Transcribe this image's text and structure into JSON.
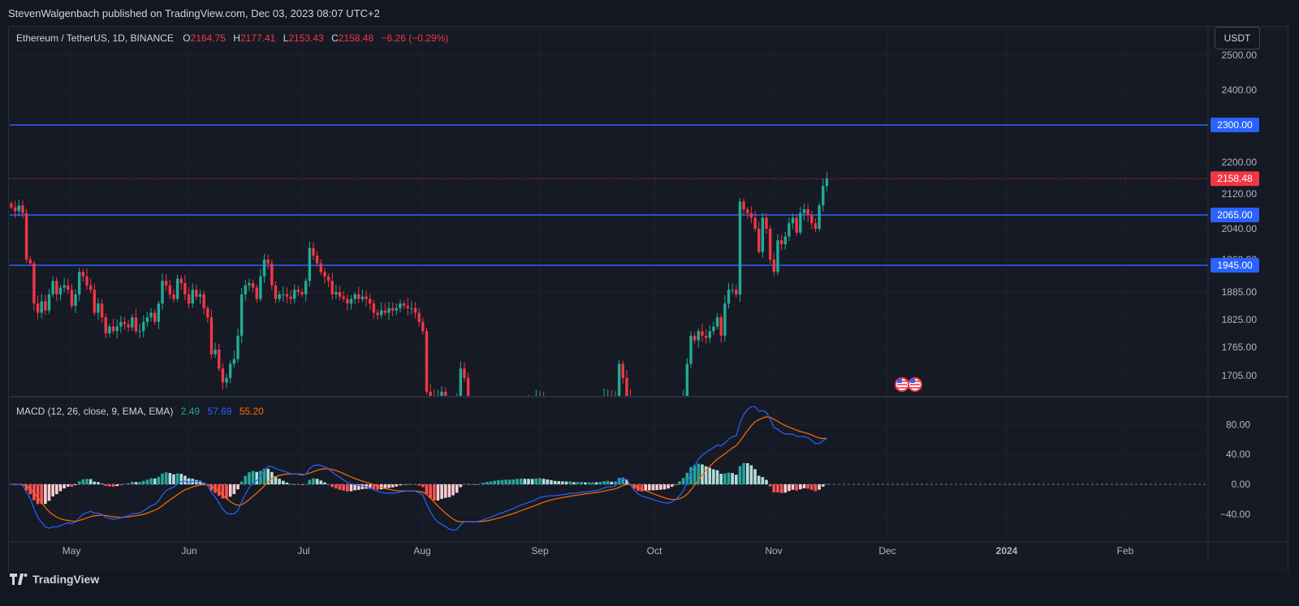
{
  "header": {
    "publisher_line": "StevenWalgenbach published on TradingView.com, Dec 03, 2023 08:07 UTC+2"
  },
  "legend": {
    "symbol": "Ethereum / TetherUS, 1D, BINANCE",
    "o_label": "O",
    "o_value": "2164.75",
    "h_label": "H",
    "h_value": "2177.41",
    "l_label": "L",
    "l_value": "2153.43",
    "c_label": "C",
    "c_value": "2158.48",
    "change": "−6.26 (−0.29%)"
  },
  "macd_legend": {
    "title": "MACD (12, 26, close, 9, EMA, EMA)",
    "hist": "2.49",
    "macd": "57.69",
    "signal": "55.20"
  },
  "currency_button": "USDT",
  "footer_brand": "TradingView",
  "colors": {
    "up": "#22ab94",
    "down": "#f23645",
    "level": "#2962ff",
    "macd_line": "#2962ff",
    "signal_line": "#ff6d00",
    "hist_up_strong": "#26a69a",
    "hist_up_weak": "#b2dfdb",
    "hist_down_strong": "#ff5252",
    "hist_down_weak": "#ffcdd2"
  },
  "chart_data": [
    {
      "type": "candlestick",
      "symbol": "ETHUSDT",
      "interval": "1D",
      "price_ticks": [
        "2500.00",
        "2400.00",
        "2200.00",
        "2120.00",
        "2040.00",
        "1960.00",
        "1885.00",
        "1825.00",
        "1765.00",
        "1705.00"
      ],
      "time_ticks": [
        "May",
        "Jun",
        "Jul",
        "Aug",
        "Sep",
        "Oct",
        "Nov",
        "Dec",
        "2024",
        "Feb"
      ],
      "horizontal_levels": [
        {
          "value": 2300.0,
          "label": "2300.00"
        },
        {
          "value": 2065.0,
          "label": "2065.00"
        },
        {
          "value": 1945.0,
          "label": "1945.00"
        }
      ],
      "last_price": {
        "value": 2158.48,
        "label": "2158.48"
      },
      "closes": [
        2085,
        2075,
        2090,
        2070,
        1960,
        1950,
        1860,
        1840,
        1865,
        1845,
        1880,
        1910,
        1880,
        1895,
        1900,
        1890,
        1855,
        1880,
        1930,
        1920,
        1900,
        1890,
        1840,
        1860,
        1830,
        1795,
        1810,
        1800,
        1810,
        1820,
        1815,
        1808,
        1830,
        1800,
        1800,
        1820,
        1830,
        1840,
        1820,
        1860,
        1910,
        1900,
        1880,
        1870,
        1915,
        1905,
        1880,
        1860,
        1890,
        1875,
        1880,
        1850,
        1830,
        1750,
        1760,
        1720,
        1690,
        1700,
        1730,
        1740,
        1790,
        1880,
        1900,
        1905,
        1895,
        1870,
        1920,
        1960,
        1950,
        1900,
        1870,
        1880,
        1880,
        1875,
        1870,
        1890,
        1885,
        1880,
        1910,
        1990,
        1970,
        1950,
        1930,
        1920,
        1910,
        1880,
        1885,
        1875,
        1870,
        1860,
        1870,
        1880,
        1870,
        1875,
        1870,
        1860,
        1840,
        1835,
        1845,
        1840,
        1850,
        1845,
        1850,
        1860,
        1855,
        1850,
        1850,
        1840,
        1820,
        1800,
        1670,
        1660,
        1650,
        1660,
        1670,
        1650,
        1630,
        1640,
        1650,
        1720,
        1700,
        1650,
        1630,
        1640,
        1640,
        1645,
        1645,
        1640,
        1645,
        1645,
        1640,
        1640,
        1640,
        1640,
        1650,
        1650,
        1640,
        1645,
        1645,
        1660,
        1660,
        1645,
        1645,
        1640,
        1635,
        1640,
        1640,
        1640,
        1645,
        1630,
        1640,
        1645,
        1630,
        1640,
        1640,
        1640,
        1650,
        1660,
        1660,
        1640,
        1660,
        1730,
        1700,
        1660,
        1580,
        1565,
        1570,
        1580,
        1590,
        1580,
        1570,
        1565,
        1560,
        1555,
        1560,
        1580,
        1600,
        1630,
        1660,
        1730,
        1790,
        1780,
        1800,
        1790,
        1785,
        1800,
        1810,
        1830,
        1790,
        1860,
        1890,
        1890,
        1880,
        2100,
        2080,
        2070,
        2060,
        2040,
        1980,
        2060,
        2040,
        1960,
        1930,
        2010,
        2000,
        2020,
        2050,
        2060,
        2030,
        2070,
        2080,
        2065,
        2050,
        2040,
        2090,
        2140,
        2158.48
      ]
    },
    {
      "type": "macd",
      "params": "12, 26, close, 9, EMA, EMA",
      "y_ticks": [
        "80.00",
        "40.00",
        "0.00",
        "−40.00"
      ],
      "last": {
        "histogram": 2.49,
        "macd": 57.69,
        "signal": 55.2
      }
    }
  ]
}
